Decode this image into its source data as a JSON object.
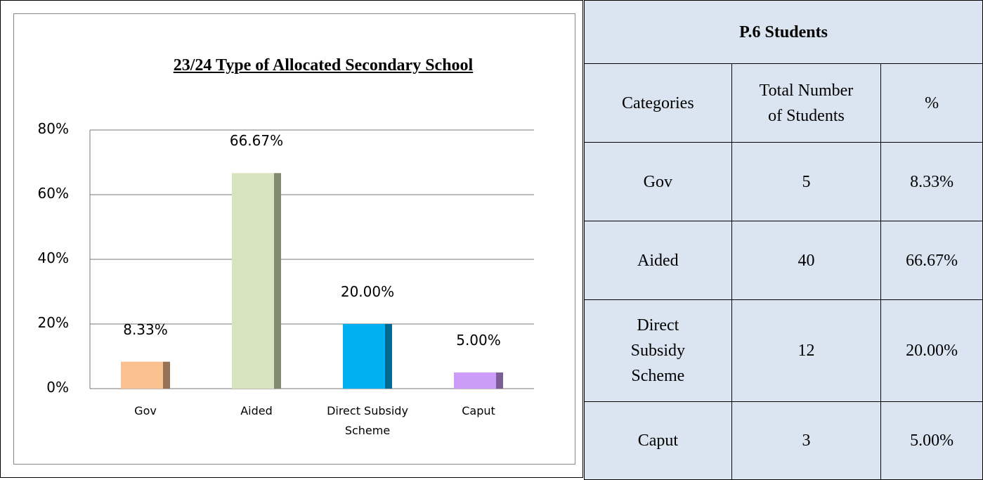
{
  "chart_data": {
    "type": "bar",
    "title": "23/24 Type of Allocated Secondary School",
    "categories": [
      "Gov",
      "Aided",
      "Direct Subsidy Scheme",
      "Caput"
    ],
    "values": [
      8.33,
      66.67,
      20.0,
      5.0
    ],
    "value_labels": [
      "8.33%",
      "66.67%",
      "20.00%",
      "5.00%"
    ],
    "colors": [
      "#fac090",
      "#d7e4bd",
      "#00b0f0",
      "#cc9cf8"
    ],
    "ylim": [
      0,
      80
    ],
    "yticks": [
      {
        "value": 0,
        "label": "0%"
      },
      {
        "value": 20,
        "label": "20%"
      },
      {
        "value": 40,
        "label": "40%"
      },
      {
        "value": 60,
        "label": "60%"
      },
      {
        "value": 80,
        "label": "80%"
      }
    ],
    "grid": true
  },
  "table": {
    "title": "P.6 Students",
    "header": [
      "Categories",
      "Total Number of Students",
      "%"
    ],
    "rows": [
      [
        "Gov",
        "5",
        "8.33%"
      ],
      [
        "Aided",
        "40",
        "66.67%"
      ],
      [
        "Direct Subsidy Scheme",
        "12",
        "20.00%"
      ],
      [
        "Caput",
        "3",
        "5.00%"
      ]
    ]
  }
}
